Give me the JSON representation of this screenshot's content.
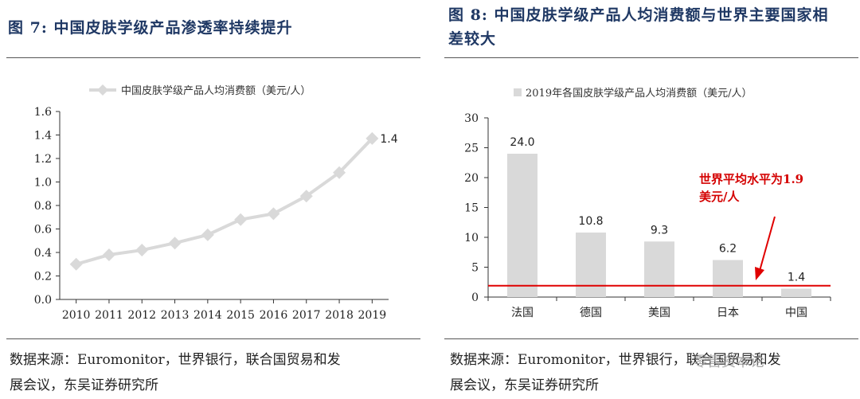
{
  "left": {
    "title": "图 7:  中国皮肤学级产品渗透率持续提升",
    "source_line1": "数据来源：Euromonitor，世界银行，联合国贸易和发",
    "source_line2": "展会议，东吴证券研究所"
  },
  "right": {
    "title_line1": "图 8:  中国皮肤学级产品人均消费额与世界主要国家相",
    "title_line2": "差较大",
    "source_line1": "数据来源：Euromonitor，世界银行，联合国贸易和发",
    "source_line2": "展会议，东吴证券研究所",
    "annotation_line1": "世界平均水平为1.9",
    "annotation_line2": "美元/人"
  },
  "watermark": "零售资本论",
  "chart_data": [
    {
      "type": "line",
      "title": "",
      "legend": "中国皮肤学级产品人均消费额（美元/人）",
      "legend_position": "top-center",
      "x": [
        "2010",
        "2011",
        "2012",
        "2013",
        "2014",
        "2015",
        "2016",
        "2017",
        "2018",
        "2019"
      ],
      "values": [
        0.3,
        0.38,
        0.42,
        0.48,
        0.55,
        0.68,
        0.73,
        0.88,
        1.08,
        1.37
      ],
      "end_label": "1.4",
      "ylim": [
        0,
        1.6
      ],
      "yticks": [
        "0.0",
        "0.2",
        "0.4",
        "0.6",
        "0.8",
        "1.0",
        "1.2",
        "1.4",
        "1.6"
      ],
      "grid": false,
      "color": "#d9d9d9"
    },
    {
      "type": "bar",
      "title": "",
      "legend": "2019年各国皮肤学级产品人均消费额（美元/人）",
      "legend_position": "top-center",
      "categories": [
        "法国",
        "德国",
        "美国",
        "日本",
        "中国"
      ],
      "values": [
        24.0,
        10.8,
        9.3,
        6.2,
        1.4
      ],
      "value_labels": [
        "24.0",
        "10.8",
        "9.3",
        "6.2",
        "1.4"
      ],
      "reference_line": 1.9,
      "ylim": [
        0,
        30
      ],
      "yticks": [
        "0",
        "5",
        "10",
        "15",
        "20",
        "25",
        "30"
      ],
      "grid": false,
      "bar_color": "#d9d9d9",
      "line_color": "#e00000"
    }
  ]
}
